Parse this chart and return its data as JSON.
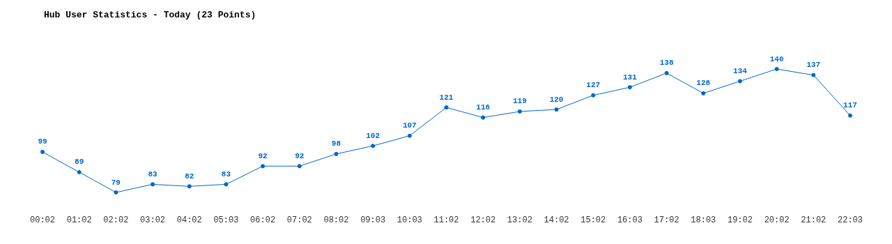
{
  "chart_data": {
    "type": "line",
    "title": "Hub User Statistics - Today (23 Points)",
    "categories": [
      "00:02",
      "01:02",
      "02:02",
      "03:02",
      "04:02",
      "05:03",
      "06:02",
      "07:02",
      "08:02",
      "09:03",
      "10:03",
      "11:02",
      "12:02",
      "13:02",
      "14:02",
      "15:02",
      "16:03",
      "17:02",
      "18:03",
      "19:02",
      "20:02",
      "21:02",
      "22:03"
    ],
    "series": [
      {
        "color": "#0066cc",
        "values": [
          99,
          89,
          79,
          83,
          82,
          83,
          92,
          92,
          98,
          102,
          107,
          121,
          116,
          119,
          120,
          127,
          131,
          138,
          128,
          134,
          140,
          137,
          117
        ]
      }
    ],
    "data_labels": true,
    "marker": "circle",
    "line_style": "solid",
    "grid": false,
    "tick_labels": "x"
  }
}
